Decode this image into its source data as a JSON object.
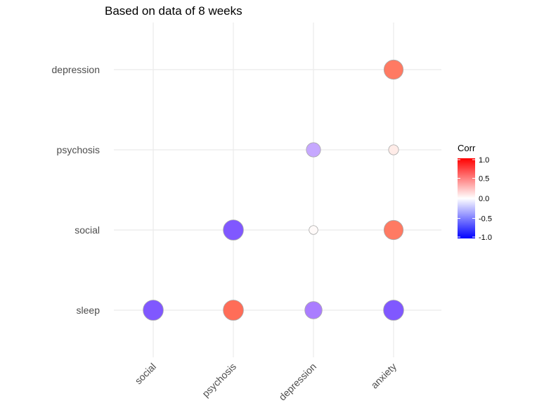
{
  "chart_data": {
    "type": "scatter",
    "subtype": "correlation-bubble-matrix",
    "title": "Based on data of 8 weeks",
    "x_categories": [
      "social",
      "psychosis",
      "depression",
      "anxiety"
    ],
    "y_categories": [
      "sleep",
      "social",
      "psychosis",
      "depression"
    ],
    "points": [
      {
        "x": "social",
        "y": "sleep",
        "corr": -0.6
      },
      {
        "x": "psychosis",
        "y": "sleep",
        "corr": 0.6
      },
      {
        "x": "depression",
        "y": "sleep",
        "corr": -0.45
      },
      {
        "x": "anxiety",
        "y": "sleep",
        "corr": -0.6
      },
      {
        "x": "psychosis",
        "y": "social",
        "corr": -0.6
      },
      {
        "x": "depression",
        "y": "social",
        "corr": 0.02
      },
      {
        "x": "anxiety",
        "y": "social",
        "corr": 0.55
      },
      {
        "x": "depression",
        "y": "psychosis",
        "corr": -0.3
      },
      {
        "x": "anxiety",
        "y": "psychosis",
        "corr": 0.08
      },
      {
        "x": "anxiety",
        "y": "depression",
        "corr": 0.55
      }
    ],
    "color_scale": {
      "low": "#0000ff",
      "mid": "#ffffff",
      "high": "#ff0000",
      "min": -1,
      "max": 1
    },
    "legend": {
      "title": "Corr",
      "ticks": [
        {
          "value": 1.0,
          "label": "1.0"
        },
        {
          "value": 0.5,
          "label": "0.5"
        },
        {
          "value": 0.0,
          "label": "0.0"
        },
        {
          "value": -0.5,
          "label": "-0.5"
        },
        {
          "value": -1.0,
          "label": "-1.0"
        }
      ],
      "placement": "right"
    },
    "grid": true,
    "point_border_color": "#a9a9a9"
  }
}
